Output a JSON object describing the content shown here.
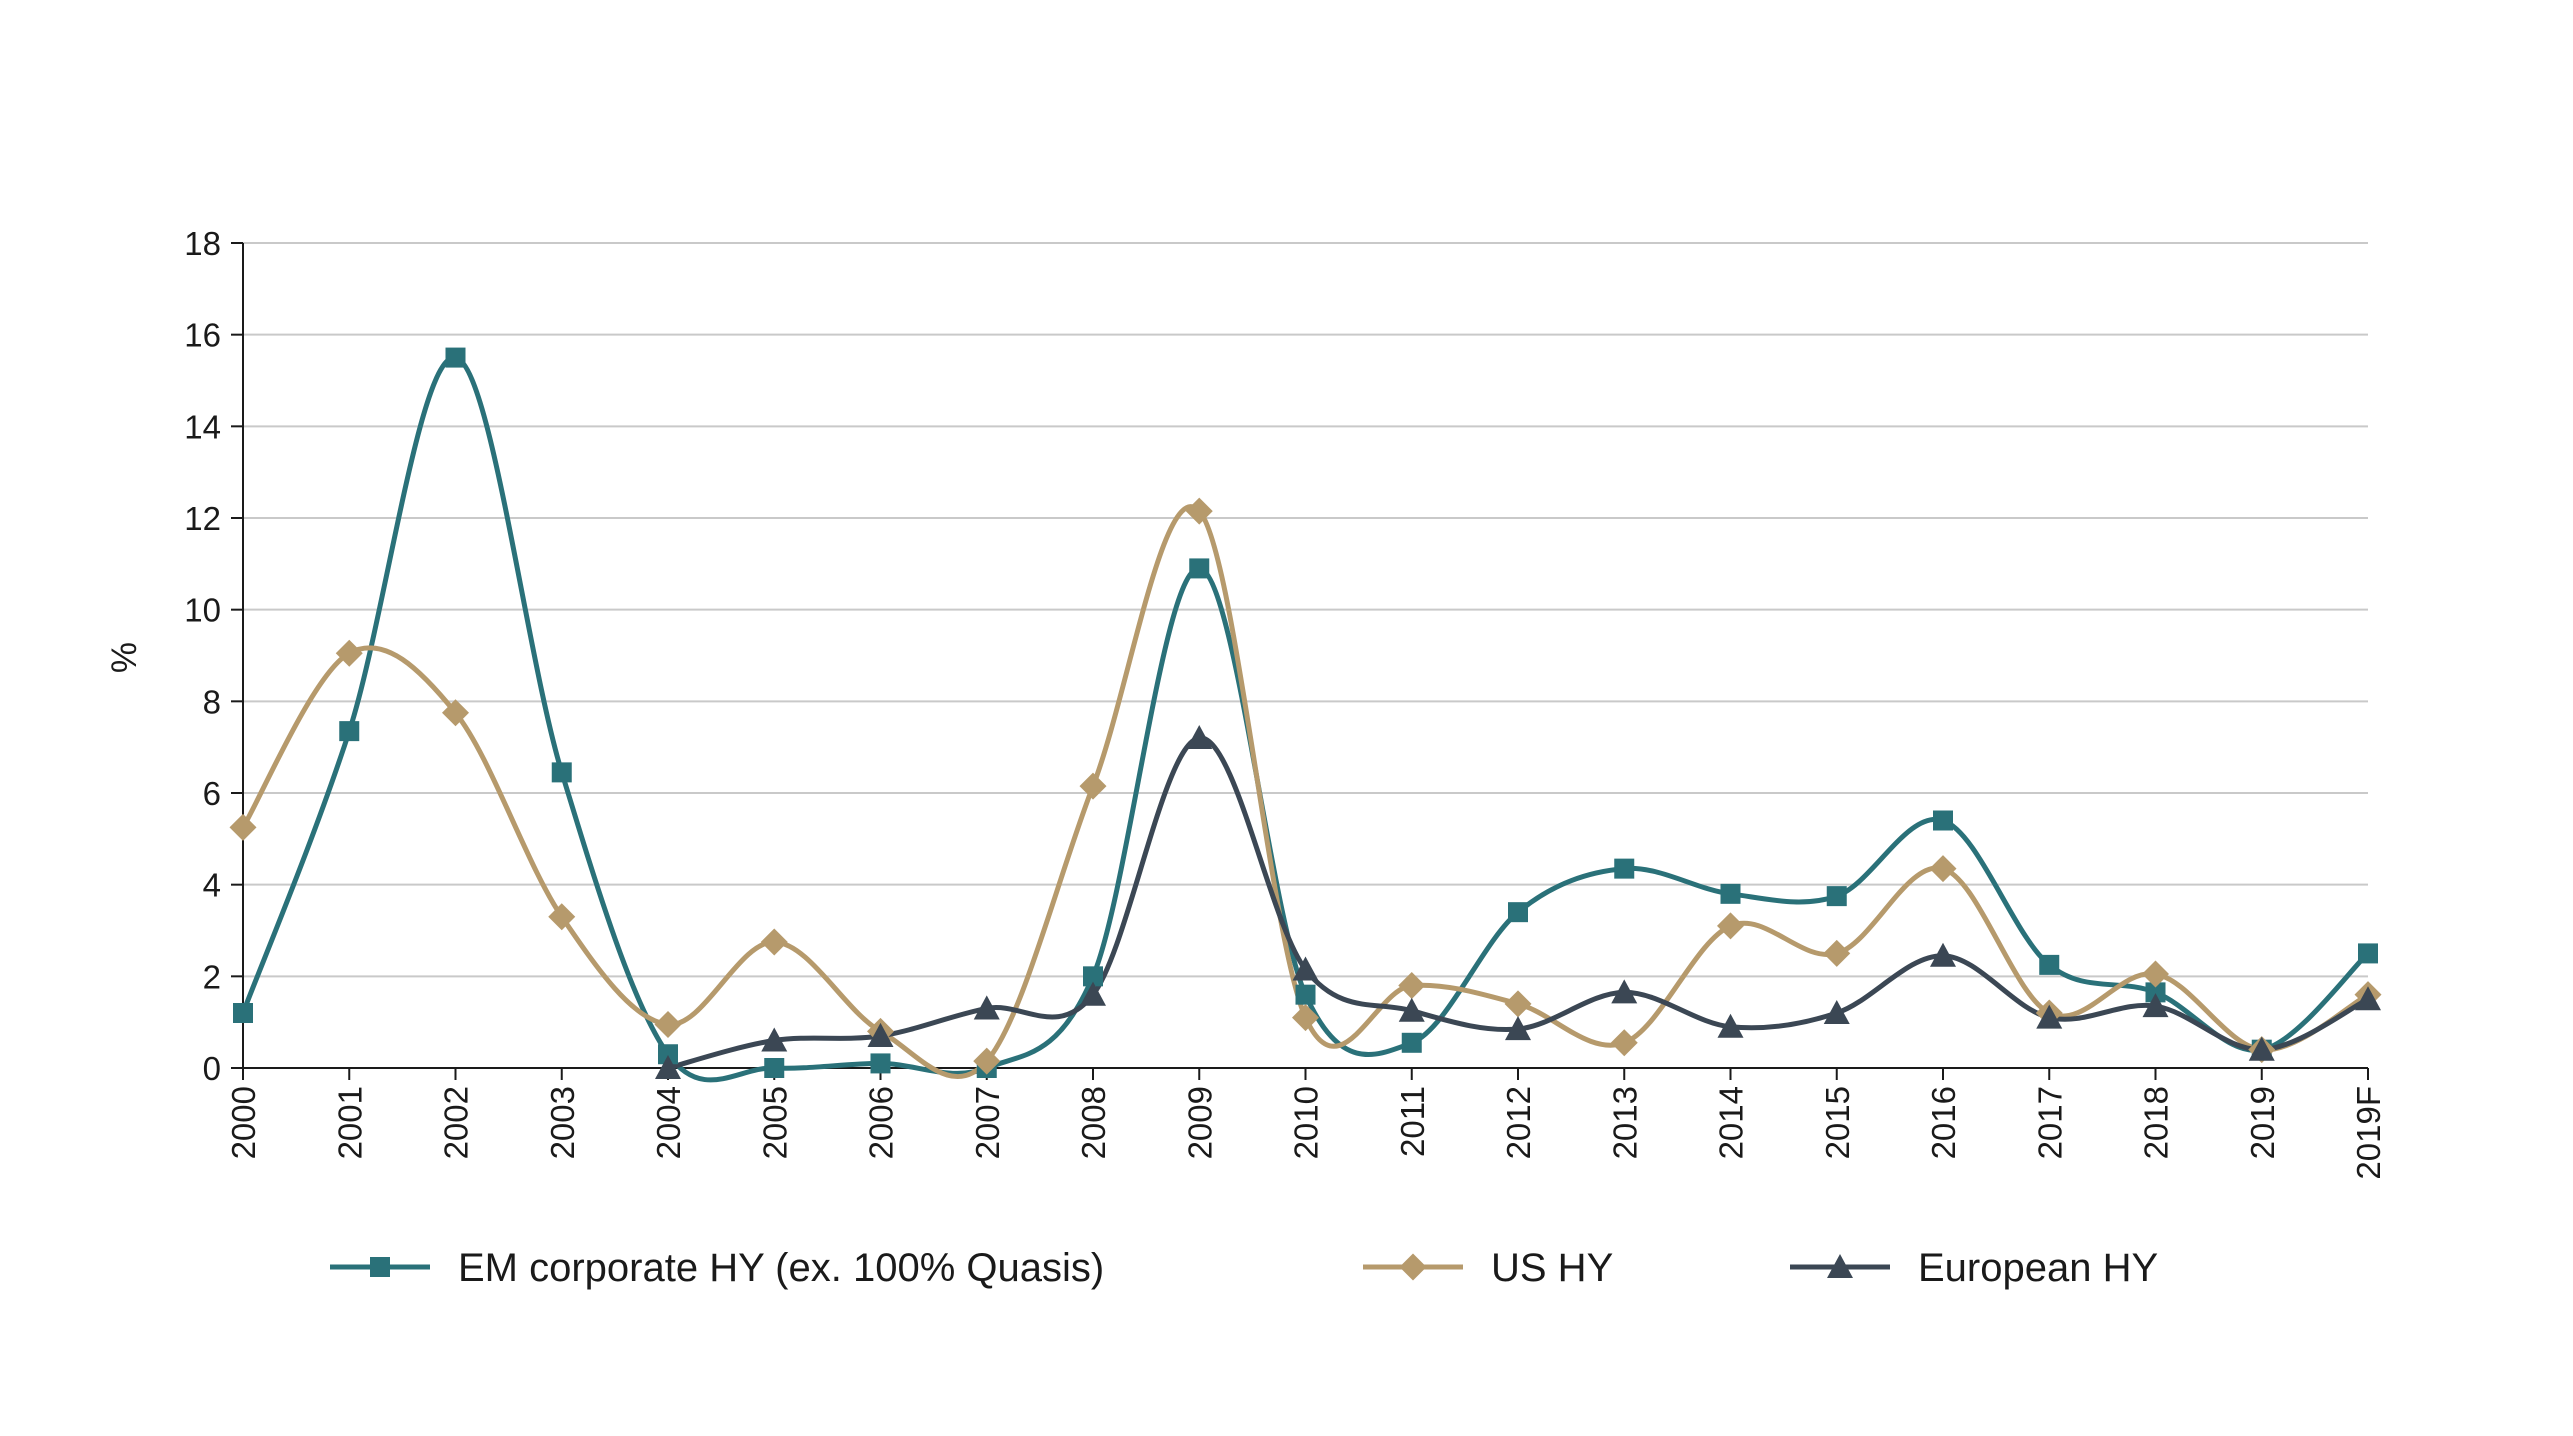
{
  "chart_data": {
    "type": "line",
    "title": "",
    "xlabel": "",
    "ylabel": "%",
    "ylim": [
      0,
      18
    ],
    "yticks": [
      0,
      2,
      4,
      6,
      8,
      10,
      12,
      14,
      16,
      18
    ],
    "grid": true,
    "legend_position": "bottom",
    "categories": [
      "2000",
      "2001",
      "2002",
      "2003",
      "2004",
      "2005",
      "2006",
      "2007",
      "2008",
      "2009",
      "2010",
      "2011",
      "2012",
      "2013",
      "2014",
      "2015",
      "2016",
      "2017",
      "2018",
      "2019",
      "2019F"
    ],
    "series": [
      {
        "name": "EM corporate HY (ex. 100% Quasis)",
        "color": "#2A7179",
        "marker": "square",
        "values": [
          1.2,
          7.35,
          15.5,
          6.45,
          0.3,
          0.0,
          0.1,
          0.0,
          2.0,
          10.9,
          1.6,
          0.55,
          3.4,
          4.35,
          3.8,
          3.75,
          5.4,
          2.25,
          1.65,
          0.4,
          2.5
        ]
      },
      {
        "name": "US HY",
        "color": "#B69A6C",
        "marker": "diamond",
        "values": [
          5.25,
          9.05,
          7.75,
          3.3,
          0.95,
          2.75,
          0.8,
          0.15,
          6.15,
          12.15,
          1.1,
          1.8,
          1.4,
          0.55,
          3.1,
          2.5,
          4.35,
          1.2,
          2.05,
          0.4,
          1.6
        ]
      },
      {
        "name": "European HY",
        "color": "#3B4754",
        "marker": "triangle",
        "values": [
          null,
          null,
          null,
          null,
          0.0,
          0.6,
          0.7,
          1.3,
          1.6,
          7.2,
          2.15,
          1.25,
          0.85,
          1.65,
          0.9,
          1.2,
          2.45,
          1.1,
          1.35,
          0.4,
          1.5
        ]
      }
    ]
  }
}
